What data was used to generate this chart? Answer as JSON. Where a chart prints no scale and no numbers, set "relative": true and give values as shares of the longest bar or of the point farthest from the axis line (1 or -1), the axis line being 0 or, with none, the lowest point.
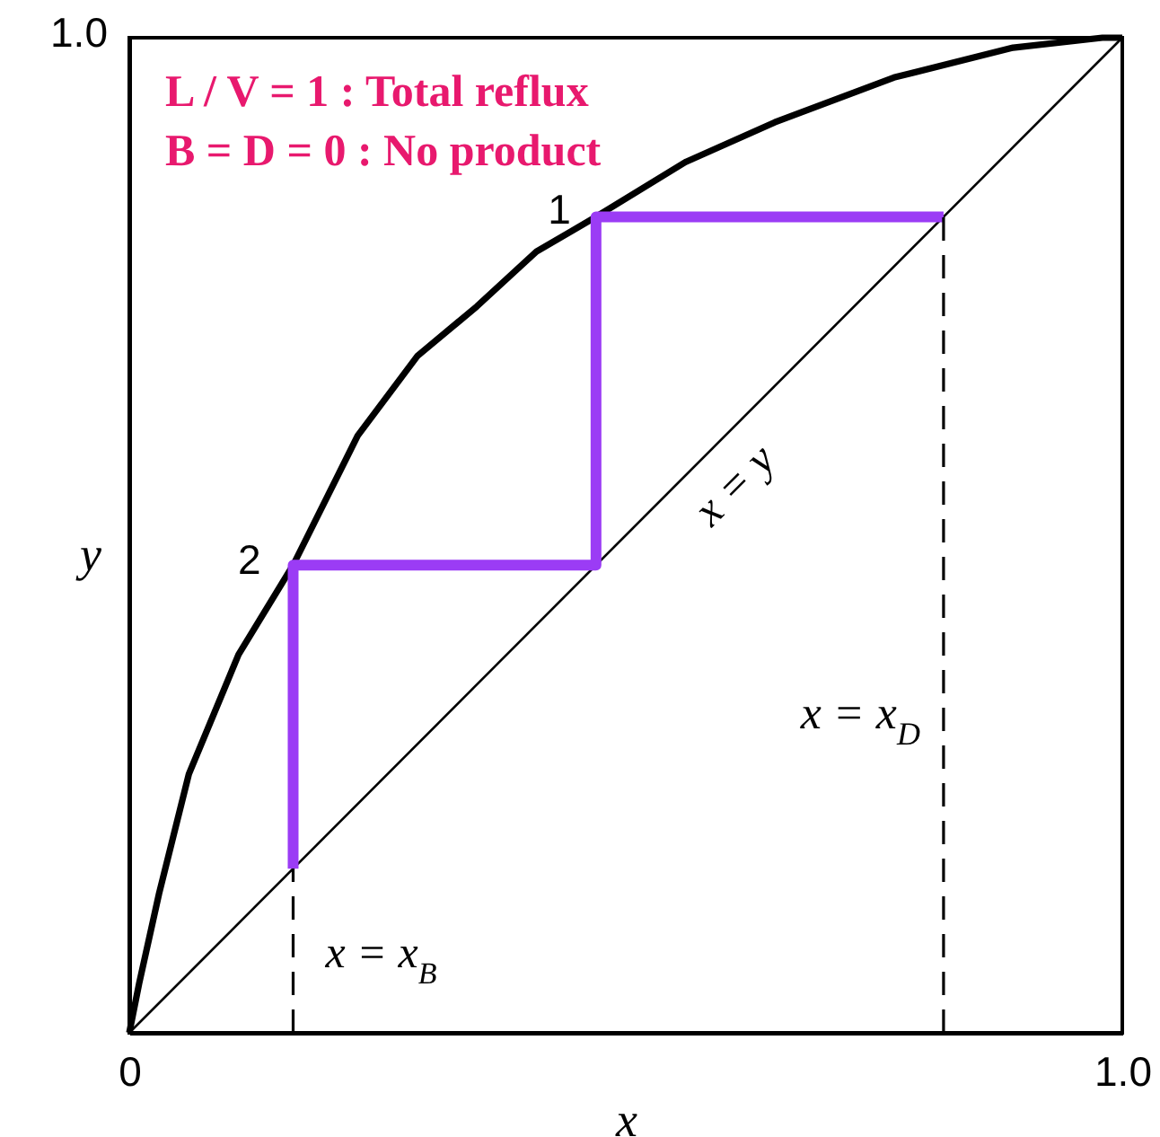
{
  "chart_data": {
    "type": "line",
    "relative": true,
    "xlabel": "x",
    "ylabel": "y",
    "xlim": [
      0,
      1
    ],
    "xticks": [
      {
        "value": 0,
        "label": "0"
      },
      {
        "value": 1,
        "label": "1.0"
      }
    ],
    "series": [
      {
        "color": "#000000",
        "x": [
          0,
          0.01,
          0.03,
          0.06,
          0.11,
          0.165,
          0.23,
          0.29,
          0.35,
          0.41,
          0.47,
          0.56,
          0.65,
          0.77,
          0.89,
          0.98,
          1
        ],
        "values": [
          0,
          0.05,
          0.14,
          0.26,
          0.38,
          0.47,
          0.6,
          0.68,
          0.73,
          0.785,
          0.82,
          0.875,
          0.915,
          0.96,
          0.99,
          1,
          1
        ]
      },
      {
        "color": "#000000",
        "x": [
          0,
          1
        ],
        "values": [
          0,
          1
        ]
      },
      {
        "color": "#9b3cf5",
        "x": [
          0.82,
          0.47,
          0.47,
          0.165,
          0.165
        ],
        "values": [
          0.82,
          0.82,
          0.47,
          0.47,
          0.165
        ]
      },
      {
        "color": "#000000",
        "x": [
          0.165,
          0.165
        ],
        "values": [
          0,
          0.165
        ],
        "line_style": "dashed"
      },
      {
        "color": "#000000",
        "x": [
          0.82,
          0.82
        ],
        "values": [
          0,
          0.82
        ],
        "line_style": "dashed"
      }
    ],
    "annotations": [
      "1.0",
      "L / V = 1 : Total reflux",
      "B = D = 0 : No product",
      {
        "text": "1",
        "x": 0.47,
        "y": 0.82
      },
      {
        "text": "2",
        "x": 0.165,
        "y": 0.47
      },
      {
        "text": "x = y",
        "x": 0.58,
        "y": 0.58
      },
      {
        "text": "x = x$_{D}$",
        "x": 0.82,
        "y": 0.32
      },
      {
        "text": "x = x$_{B}$",
        "x": 0.165,
        "y": 0.08
      }
    ]
  }
}
